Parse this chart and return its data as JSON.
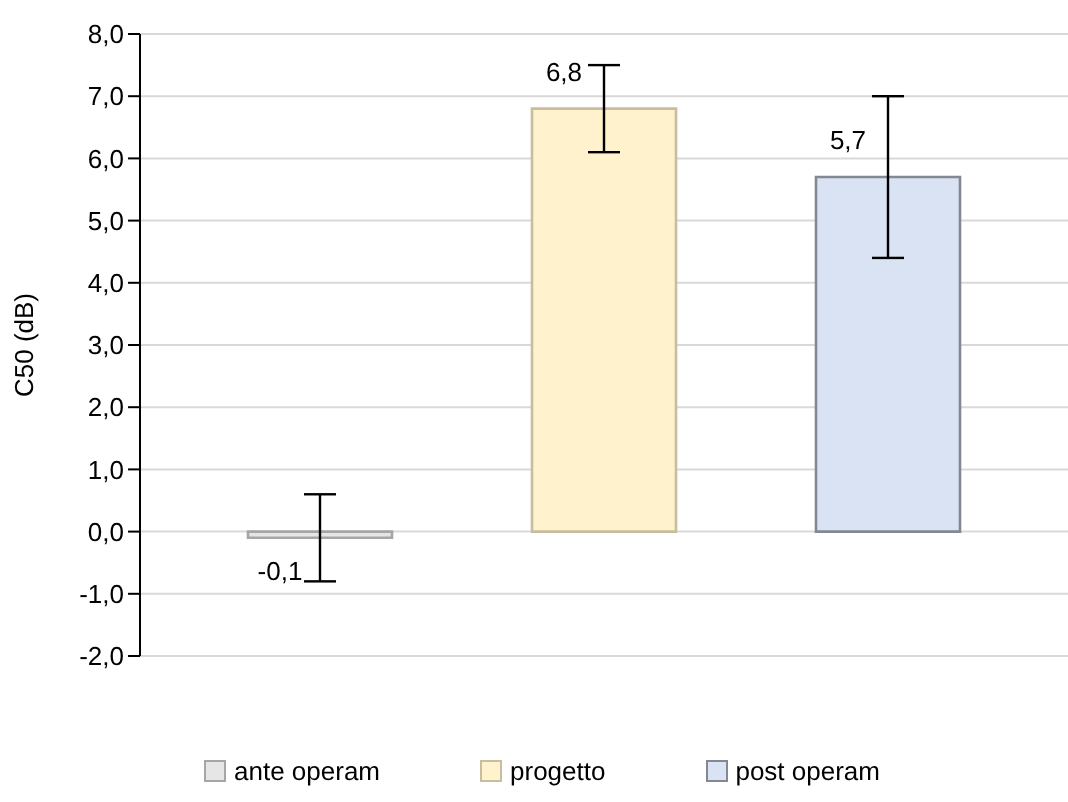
{
  "chart_data": {
    "type": "bar",
    "ylabel": "C50 (dB)",
    "categories": [
      null
    ],
    "series": [
      {
        "name": "ante operam",
        "color": "#e7e6e6",
        "values": [
          -0.1
        ],
        "errors": [
          [
            -0.8,
            0.6
          ]
        ],
        "value_labels": [
          "-0,1"
        ]
      },
      {
        "name": "progetto",
        "color": "#fff2cc",
        "values": [
          6.8
        ],
        "errors": [
          [
            6.1,
            7.5
          ]
        ],
        "value_labels": [
          "6,8"
        ]
      },
      {
        "name": "post operam",
        "color": "#dae3f3",
        "values": [
          5.7
        ],
        "errors": [
          [
            4.4,
            7.0
          ]
        ],
        "value_labels": [
          "5,7"
        ]
      }
    ],
    "ylim": [
      -2,
      8
    ],
    "yticks": [
      {
        "value": -2,
        "label": "-2,0"
      },
      {
        "value": -1,
        "label": "-1,0"
      },
      {
        "value": 0,
        "label": "0,0"
      },
      {
        "value": 1,
        "label": "1,0"
      },
      {
        "value": 2,
        "label": "2,0"
      },
      {
        "value": 3,
        "label": "3,0"
      },
      {
        "value": 4,
        "label": "4,0"
      },
      {
        "value": 5,
        "label": "5,0"
      },
      {
        "value": 6,
        "label": "6,0"
      },
      {
        "value": 7,
        "label": "7,0"
      },
      {
        "value": 8,
        "label": "8,0"
      }
    ],
    "grid": "y",
    "legend": "bottom"
  }
}
